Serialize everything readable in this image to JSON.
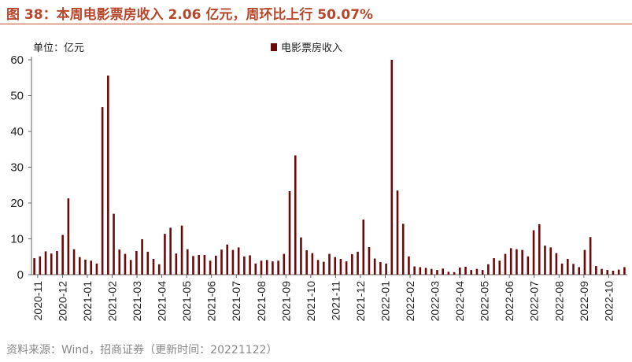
{
  "title": "图 38：本周电影票房收入 2.06 亿元，周环比上行 50.07%",
  "source": "资料来源：Wind，招商证券（更新时间：20221122）",
  "colors": {
    "bar": "#6b0a0a",
    "title": "#b7472a"
  },
  "chart_data": {
    "type": "bar",
    "unit_label": "单位：亿元",
    "legend": [
      "电影票房收入"
    ],
    "legend_position": "top-center",
    "ylim": [
      0,
      60
    ],
    "yticks": [
      0,
      10,
      20,
      30,
      40,
      50,
      60
    ],
    "grid": false,
    "xtick_labels": [
      "2020-11",
      "2020-12",
      "2021-01",
      "2021-02",
      "2021-03",
      "2021-04",
      "2021-05",
      "2021-06",
      "2021-07",
      "2021-08",
      "2021-09",
      "2021-10",
      "2021-11",
      "2021-12",
      "2022-01",
      "2022-02",
      "2022-03",
      "2022-04",
      "2022-05",
      "2022-06",
      "2022-07",
      "2022-08",
      "2022-09",
      "2022-10"
    ],
    "series": [
      {
        "name": "电影票房收入",
        "values": [
          4.6,
          5.1,
          6.5,
          5.9,
          6.6,
          11.1,
          21.3,
          7.1,
          4.9,
          4.2,
          3.9,
          3.1,
          46.8,
          55.6,
          17.0,
          7.0,
          5.8,
          4.1,
          6.6,
          9.9,
          6.4,
          4.4,
          2.9,
          11.4,
          13.1,
          5.9,
          13.7,
          7.1,
          5.2,
          5.5,
          5.5,
          3.9,
          5.3,
          7.0,
          8.4,
          6.9,
          7.6,
          5.1,
          5.4,
          3.1,
          3.9,
          4.1,
          3.7,
          3.9,
          5.8,
          23.3,
          33.3,
          10.4,
          6.8,
          6.0,
          4.1,
          3.6,
          5.8,
          4.9,
          4.4,
          3.7,
          5.7,
          6.4,
          15.4,
          7.7,
          4.5,
          3.5,
          3.1,
          60.0,
          23.5,
          14.2,
          5.1,
          2.3,
          2.1,
          1.9,
          1.6,
          1.3,
          1.7,
          0.8,
          0.7,
          2.0,
          2.2,
          1.3,
          1.6,
          1.3,
          2.9,
          4.6,
          3.9,
          5.8,
          7.4,
          7.1,
          6.9,
          5.1,
          12.4,
          14.1,
          8.1,
          7.6,
          6.0,
          3.1,
          4.4,
          3.0,
          2.1,
          6.9,
          10.5,
          2.4,
          1.6,
          1.3,
          1.1,
          1.4,
          2.1
        ]
      }
    ]
  }
}
